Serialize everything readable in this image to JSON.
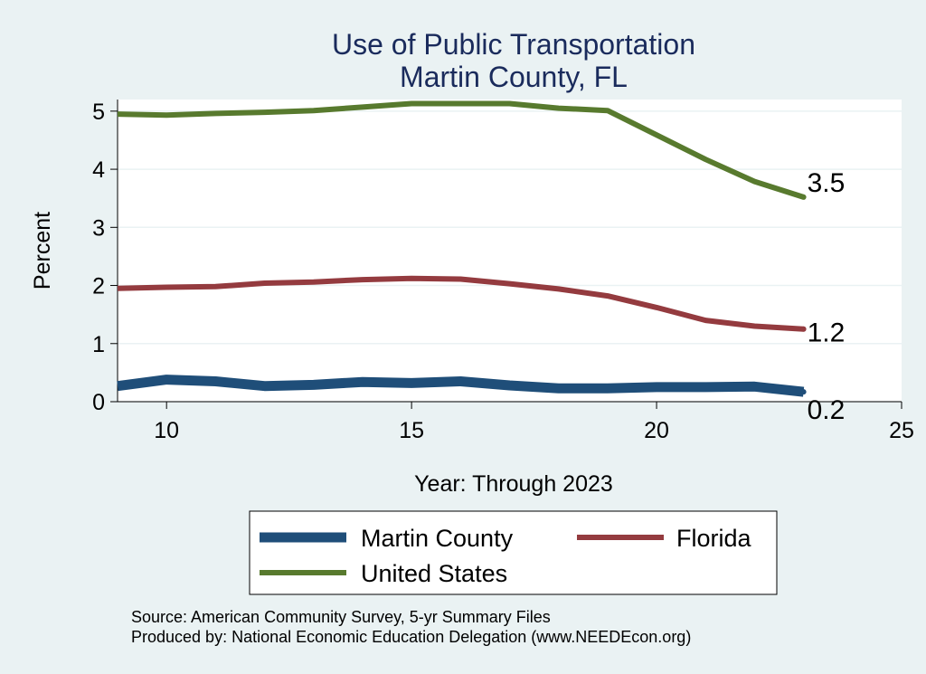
{
  "chart_data": {
    "type": "line",
    "title": [
      "Use of Public Transportation",
      "Martin County, FL"
    ],
    "xlabel": "Year: Through 2023",
    "ylabel": "Percent",
    "xlim": [
      9,
      25
    ],
    "ylim": [
      0,
      5.2
    ],
    "xticks": [
      10,
      15,
      20,
      25
    ],
    "yticks": [
      0,
      1,
      2,
      3,
      4,
      5
    ],
    "grid": true,
    "x": [
      9,
      10,
      11,
      12,
      13,
      14,
      15,
      16,
      17,
      18,
      19,
      20,
      21,
      22,
      23
    ],
    "series": [
      {
        "name": "Martin County",
        "color": "#1f4e79",
        "values": [
          0.27,
          0.38,
          0.35,
          0.27,
          0.29,
          0.34,
          0.32,
          0.35,
          0.28,
          0.23,
          0.23,
          0.25,
          0.25,
          0.26,
          0.17
        ],
        "end_label": "0.2"
      },
      {
        "name": "Florida",
        "color": "#943b3f",
        "values": [
          1.95,
          1.97,
          1.98,
          2.04,
          2.06,
          2.1,
          2.12,
          2.11,
          2.03,
          1.94,
          1.82,
          1.62,
          1.4,
          1.3,
          1.25
        ],
        "end_label": "1.2"
      },
      {
        "name": "United States",
        "color": "#587a2e",
        "values": [
          4.95,
          4.93,
          4.96,
          4.98,
          5.01,
          5.07,
          5.13,
          5.13,
          5.13,
          5.05,
          5.01,
          4.59,
          4.17,
          3.79,
          3.52
        ],
        "end_label": "3.5"
      }
    ],
    "legend": {
      "placement": "bottom",
      "entries": [
        "Martin County",
        "Florida",
        "United States"
      ]
    },
    "notes": [
      "Source: American Community Survey, 5-yr Summary Files",
      "Produced by: National Economic Education Delegation (www.NEEDEcon.org)"
    ]
  }
}
